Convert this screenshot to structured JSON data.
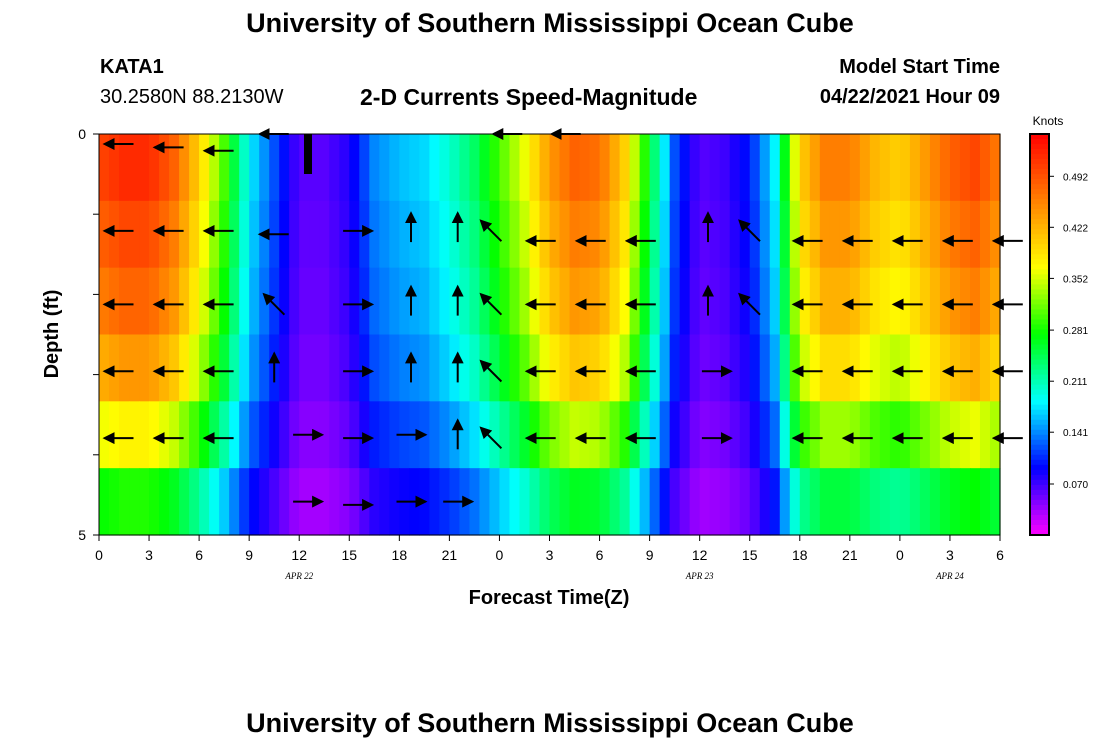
{
  "header": {
    "title": "University of Southern Mississippi Ocean Cube",
    "station": "KATA1",
    "coordinates": "30.2580N  88.2130W",
    "subtitle": "2-D Currents Speed-Magnitude",
    "model_start_label": "Model Start Time",
    "model_start_value": "04/22/2021 Hour 09"
  },
  "footer": {
    "title": "University of Southern Mississippi Ocean Cube"
  },
  "chart_data": {
    "type": "heatmap",
    "title": "2-D Currents Speed-Magnitude",
    "xlabel": "Forecast Time(Z)",
    "ylabel": "Depth (ft)",
    "x_tick_labels": [
      "0",
      "3",
      "6",
      "9",
      "12",
      "15",
      "18",
      "21",
      "0",
      "3",
      "6",
      "9",
      "12",
      "15",
      "18",
      "21",
      "0",
      "3",
      "6"
    ],
    "date_labels": [
      {
        "text": "APR  22",
        "at_tick": 4
      },
      {
        "text": "APR  23",
        "at_tick": 12
      },
      {
        "text": "APR  24",
        "at_tick": 17
      }
    ],
    "y_tick_labels": [
      "0",
      "5"
    ],
    "ylim": [
      0,
      5
    ],
    "colorbar": {
      "unit": "Knots",
      "ticks": [
        "0.492",
        "0.422",
        "0.352",
        "0.281",
        "0.211",
        "0.141",
        "0.070"
      ],
      "range": [
        0.0,
        0.55
      ],
      "colors": [
        "#ff00ff",
        "#8000ff",
        "#0000ff",
        "#0080ff",
        "#00ffff",
        "#00ff80",
        "#00ff00",
        "#80ff00",
        "#ffff00",
        "#ffc000",
        "#ff8000",
        "#ff4000",
        "#ff0000"
      ]
    },
    "column_speeds": [
      0.5,
      0.52,
      0.52,
      0.48,
      0.4,
      0.3,
      0.18,
      0.12,
      0.06,
      0.06,
      0.08,
      0.14,
      0.16,
      0.17,
      0.2,
      0.24,
      0.3,
      0.36,
      0.44,
      0.48,
      0.47,
      0.4,
      0.26,
      0.12,
      0.06,
      0.07,
      0.1,
      0.18,
      0.4,
      0.46,
      0.46,
      0.42,
      0.4,
      0.44,
      0.48,
      0.5,
      0.46
    ],
    "row_factors": [
      1.0,
      0.96,
      0.92,
      0.85,
      0.72,
      0.55
    ],
    "vectors_by_row": [
      [
        [
          1.2,
          0.15,
          "W"
        ],
        [
          4.2,
          0.2,
          "W"
        ],
        [
          7.2,
          0.25,
          "W"
        ],
        [
          10.5,
          0,
          "W"
        ],
        [
          24.5,
          0,
          "W"
        ],
        [
          28.0,
          0,
          "W"
        ]
      ],
      [
        [
          1.2,
          0.45,
          "W"
        ],
        [
          4.2,
          0.45,
          "W"
        ],
        [
          7.2,
          0.45,
          "W"
        ],
        [
          10.5,
          0.5,
          "W"
        ],
        [
          15.5,
          0.45,
          "E"
        ],
        [
          18.7,
          0.4,
          "N"
        ],
        [
          21.5,
          0.4,
          "N"
        ],
        [
          23.5,
          0.45,
          "NW"
        ],
        [
          26.5,
          0.6,
          "W"
        ],
        [
          29.5,
          0.6,
          "W"
        ],
        [
          32.5,
          0.6,
          "W"
        ],
        [
          36.5,
          0.4,
          "N"
        ],
        [
          39.0,
          0.45,
          "NW"
        ],
        [
          42.5,
          0.6,
          "W"
        ],
        [
          45.5,
          0.6,
          "W"
        ],
        [
          48.5,
          0.6,
          "W"
        ],
        [
          51.5,
          0.6,
          "W"
        ],
        [
          54.5,
          0.6,
          "W"
        ]
      ],
      [
        [
          1.2,
          0.55,
          "W"
        ],
        [
          4.2,
          0.55,
          "W"
        ],
        [
          7.2,
          0.55,
          "W"
        ],
        [
          10.5,
          0.55,
          "NW"
        ],
        [
          15.5,
          0.55,
          "E"
        ],
        [
          18.7,
          0.5,
          "N"
        ],
        [
          21.5,
          0.5,
          "N"
        ],
        [
          23.5,
          0.55,
          "NW"
        ],
        [
          26.5,
          0.55,
          "W"
        ],
        [
          29.5,
          0.55,
          "W"
        ],
        [
          32.5,
          0.55,
          "W"
        ],
        [
          36.5,
          0.5,
          "N"
        ],
        [
          39.0,
          0.55,
          "NW"
        ],
        [
          42.5,
          0.55,
          "W"
        ],
        [
          45.5,
          0.55,
          "W"
        ],
        [
          48.5,
          0.55,
          "W"
        ],
        [
          51.5,
          0.55,
          "W"
        ],
        [
          54.5,
          0.55,
          "W"
        ]
      ],
      [
        [
          1.2,
          0.55,
          "W"
        ],
        [
          4.2,
          0.55,
          "W"
        ],
        [
          7.2,
          0.55,
          "W"
        ],
        [
          10.5,
          0.5,
          "N"
        ],
        [
          15.5,
          0.55,
          "E"
        ],
        [
          18.7,
          0.5,
          "N"
        ],
        [
          21.5,
          0.5,
          "N"
        ],
        [
          23.5,
          0.55,
          "NW"
        ],
        [
          26.5,
          0.55,
          "W"
        ],
        [
          29.5,
          0.55,
          "W"
        ],
        [
          32.5,
          0.55,
          "W"
        ],
        [
          37.0,
          0.55,
          "E"
        ],
        [
          42.5,
          0.55,
          "W"
        ],
        [
          45.5,
          0.55,
          "W"
        ],
        [
          48.5,
          0.55,
          "W"
        ],
        [
          51.5,
          0.55,
          "W"
        ],
        [
          54.5,
          0.55,
          "W"
        ]
      ],
      [
        [
          1.2,
          0.55,
          "W"
        ],
        [
          4.2,
          0.55,
          "W"
        ],
        [
          7.2,
          0.55,
          "W"
        ],
        [
          12.5,
          0.5,
          "E"
        ],
        [
          15.5,
          0.55,
          "E"
        ],
        [
          18.7,
          0.5,
          "E"
        ],
        [
          21.5,
          0.5,
          "N"
        ],
        [
          23.5,
          0.55,
          "NW"
        ],
        [
          26.5,
          0.55,
          "W"
        ],
        [
          29.5,
          0.55,
          "W"
        ],
        [
          32.5,
          0.55,
          "W"
        ],
        [
          37.0,
          0.55,
          "E"
        ],
        [
          42.5,
          0.55,
          "W"
        ],
        [
          45.5,
          0.55,
          "W"
        ],
        [
          48.5,
          0.55,
          "W"
        ],
        [
          51.5,
          0.55,
          "W"
        ],
        [
          54.5,
          0.55,
          "W"
        ]
      ],
      [
        [
          12.5,
          0.5,
          "E"
        ],
        [
          15.5,
          0.55,
          "E"
        ],
        [
          18.7,
          0.5,
          "E"
        ],
        [
          21.5,
          0.5,
          "E"
        ]
      ]
    ]
  }
}
